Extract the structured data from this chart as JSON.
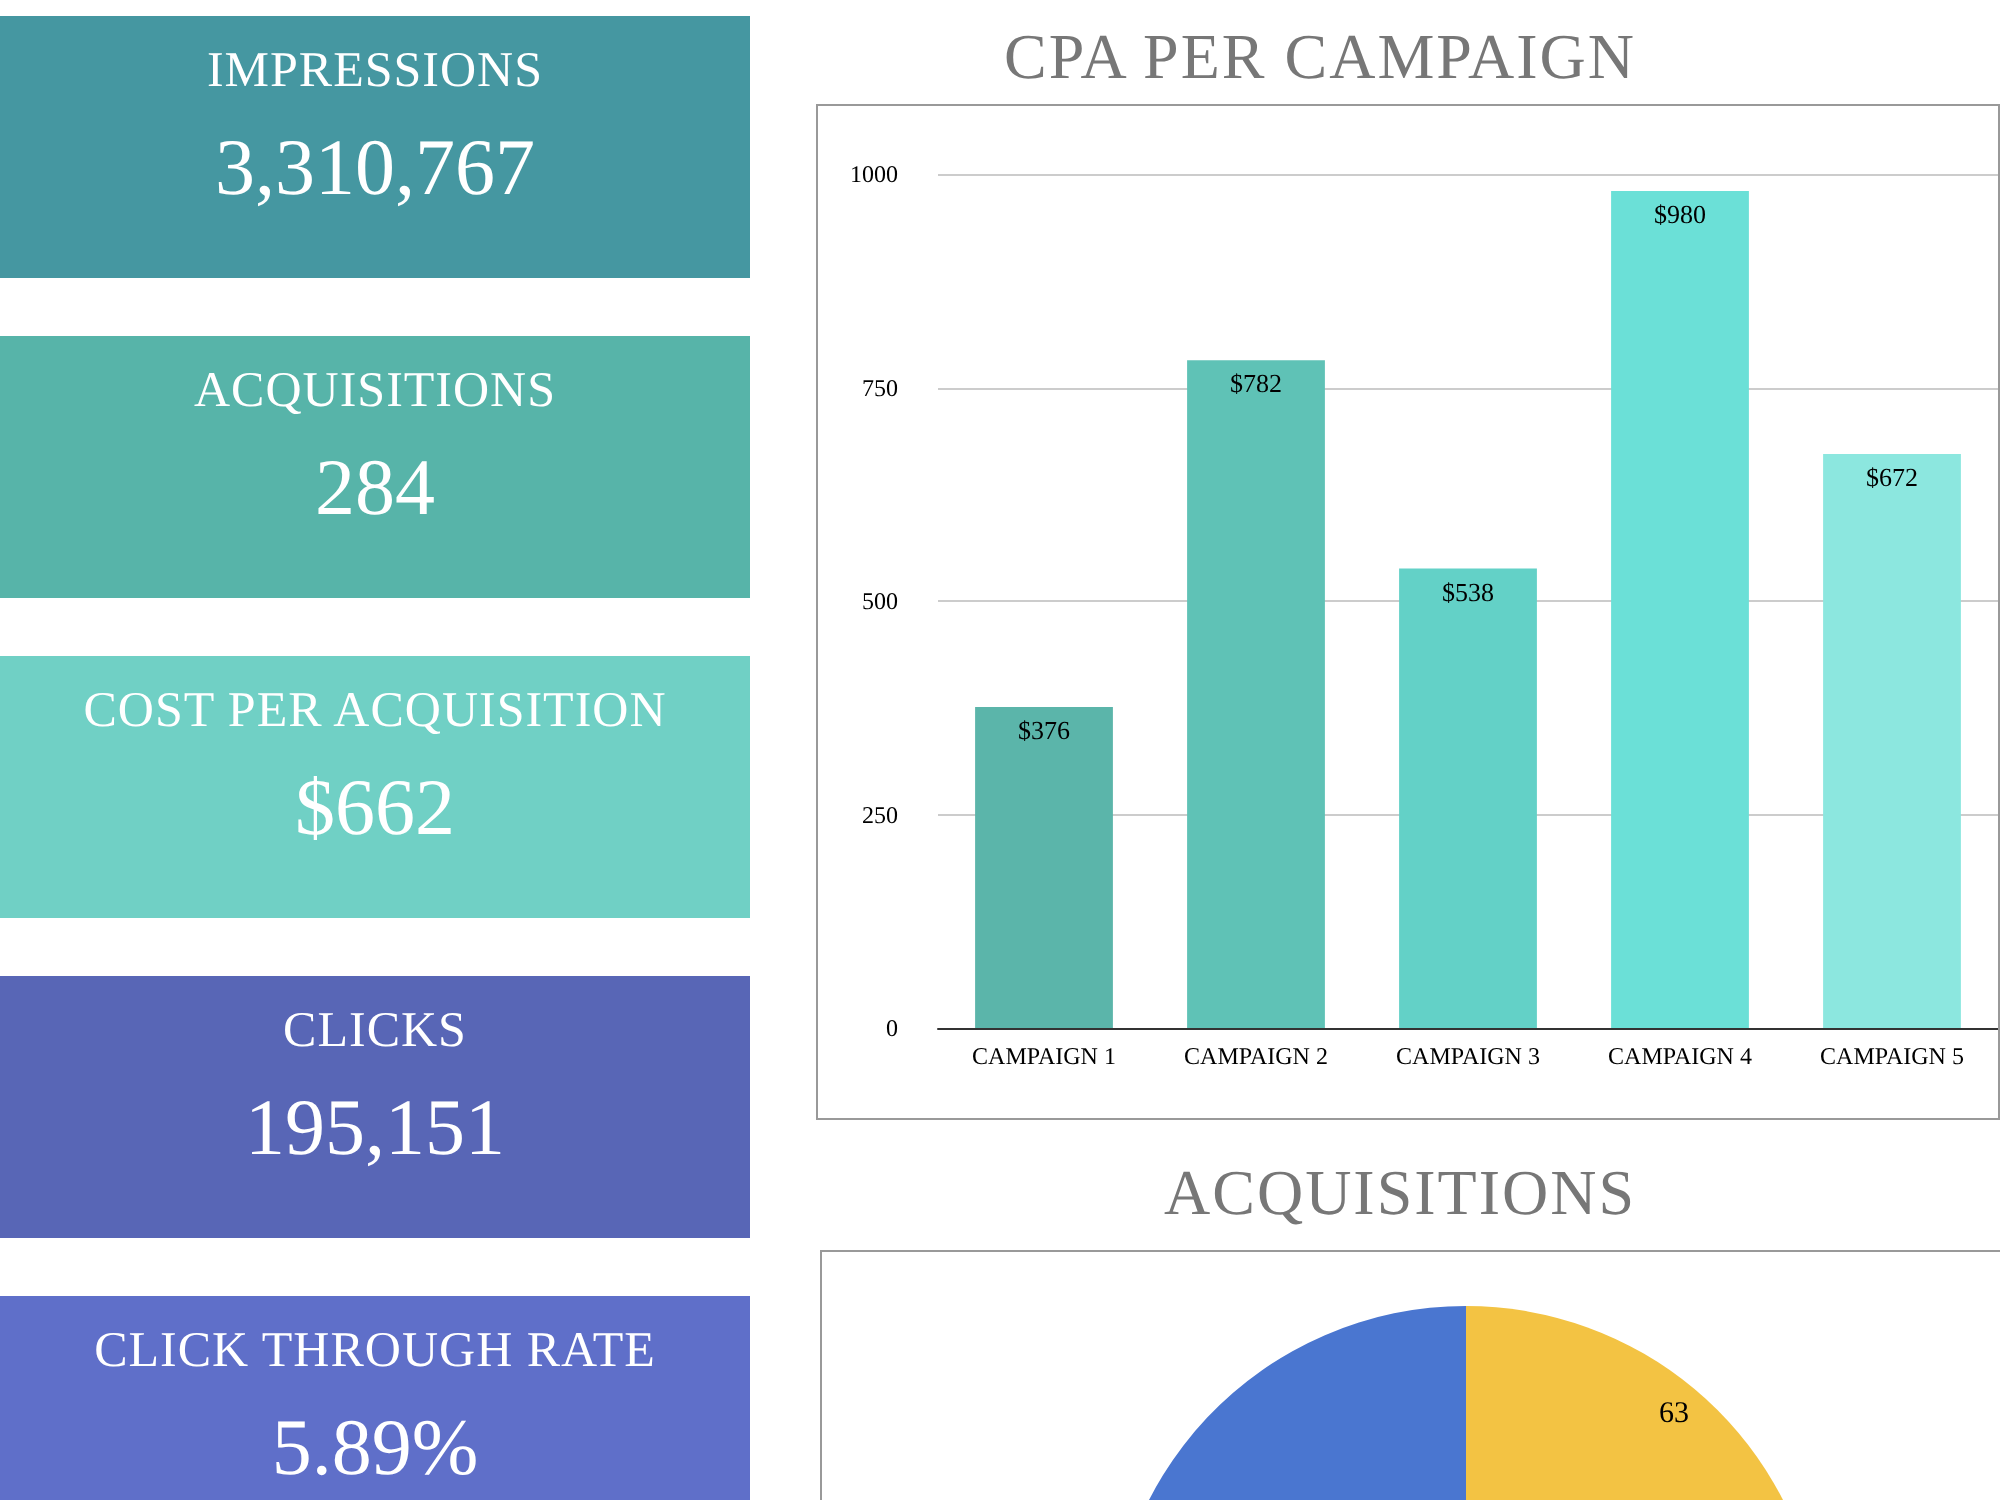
{
  "chart_data": [
    {
      "type": "other",
      "annotations": [
        "IMPRESSIONS",
        "3,310,767",
        "ACQUISITIONS",
        "284",
        "COST PER ACQUISITION",
        "$662",
        "CLICKS",
        "195,151",
        "CLICK THROUGH RATE",
        "5.89%"
      ],
      "colors": [
        "#4597a1",
        "#57b4a9",
        "#70d0c5",
        "#5866b6",
        "#5f6fc9"
      ]
    },
    {
      "type": "bar",
      "title": "CPA PER CAMPAIGN",
      "categories": [
        "CAMPAIGN 1",
        "CAMPAIGN 2",
        "CAMPAIGN 3",
        "CAMPAIGN 4",
        "CAMPAIGN 5"
      ],
      "values": [
        376,
        782,
        538,
        980,
        672
      ],
      "value_labels": [
        "$376",
        "$782",
        "$538",
        "$980",
        "$672"
      ],
      "colors": [
        "#5bb5aa",
        "#5fc2b6",
        "#63d1c7",
        "#6be0d7",
        "#8ce7df"
      ],
      "ylim": [
        0,
        1000
      ],
      "yticks": [
        0,
        250,
        500,
        750,
        {
          "value": 1000,
          "label": "1000"
        }
      ],
      "grid": "y"
    },
    {
      "type": "pie",
      "title": "ACQUISITIONS",
      "categories": [
        null,
        null
      ],
      "values": [
        63,
        221
      ],
      "value_labels": [
        "63",
        null
      ],
      "colors": [
        "#f3c343",
        "#4a76d0"
      ]
    }
  ]
}
